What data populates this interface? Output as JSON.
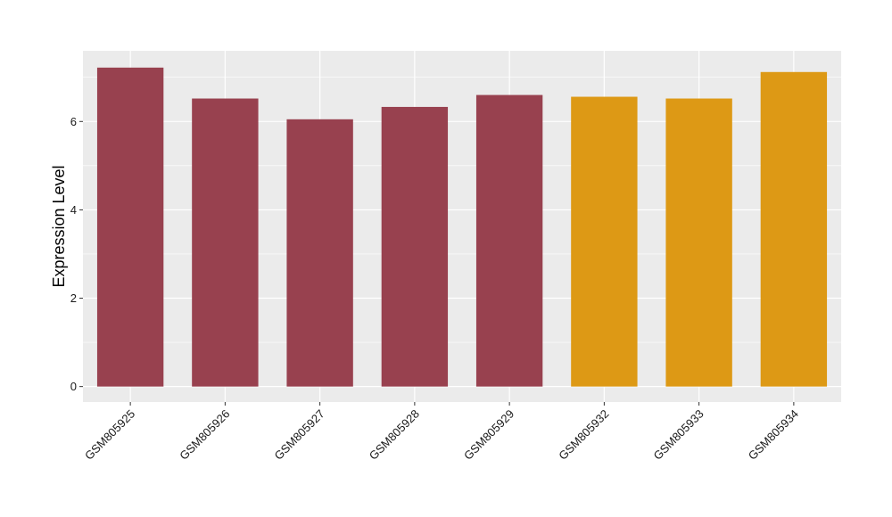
{
  "chart_data": {
    "type": "bar",
    "title": "",
    "xlabel": "",
    "ylabel": "Expression Level",
    "categories": [
      "GSM805925",
      "GSM805926",
      "GSM805927",
      "GSM805928",
      "GSM805929",
      "GSM805932",
      "GSM805933",
      "GSM805934"
    ],
    "values": [
      7.22,
      6.52,
      6.05,
      6.33,
      6.6,
      6.56,
      6.52,
      7.12
    ],
    "bar_colors": [
      "#98414f",
      "#98414f",
      "#98414f",
      "#98414f",
      "#98414f",
      "#dd9915",
      "#dd9915",
      "#dd9915"
    ],
    "yticks": [
      0,
      2,
      4,
      6
    ],
    "ylim": [
      -0.35,
      7.6
    ],
    "grid": true,
    "legend": "none",
    "panel_background": "#ebebeb",
    "grid_color": "#ffffff"
  }
}
